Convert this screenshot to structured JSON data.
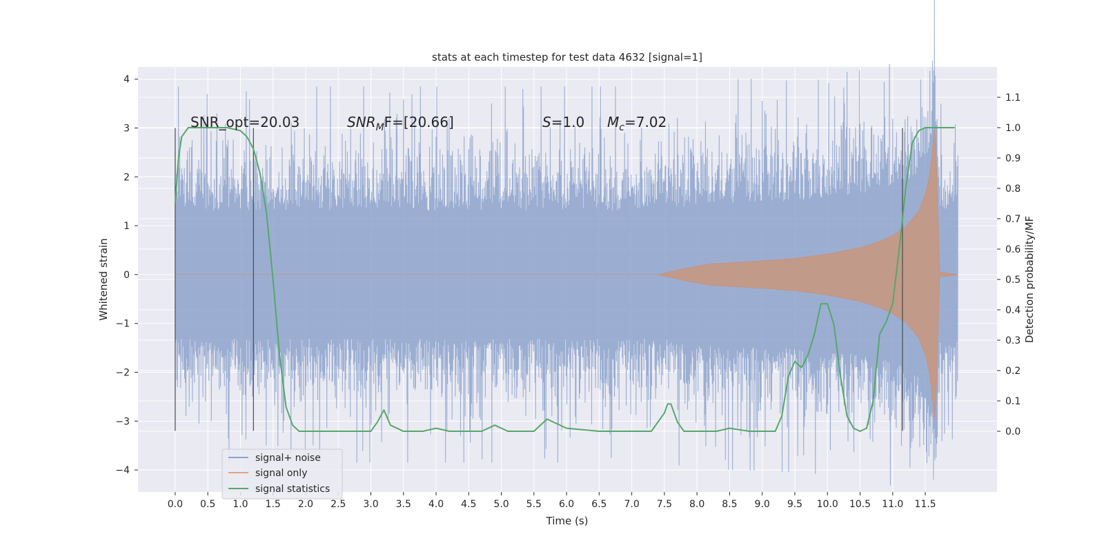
{
  "chart_data": {
    "type": "line",
    "title": "stats at each timestep for test data 4632 [signal=1]",
    "xlabel": "Time (s)",
    "ylabel": "Whitened strain",
    "ylabel_right": "Detection probability/MF",
    "xlim": [
      -0.57,
      12.6
    ],
    "ylim": [
      -4.45,
      4.25
    ],
    "ylim_right": [
      -0.2,
      1.2
    ],
    "x_ticks": [
      "0.0",
      "0.5",
      "1.0",
      "1.5",
      "2.0",
      "2.5",
      "3.0",
      "3.5",
      "4.0",
      "4.5",
      "5.0",
      "5.5",
      "6.0",
      "6.5",
      "7.0",
      "7.5",
      "8.0",
      "8.5",
      "9.0",
      "9.5",
      "10.0",
      "10.5",
      "11.0",
      "11.5"
    ],
    "y_ticks": [
      "−4",
      "−3",
      "−2",
      "−1",
      "0",
      "1",
      "2",
      "3",
      "4"
    ],
    "y_ticks_right": [
      "0.0",
      "0.1",
      "0.2",
      "0.3",
      "0.4",
      "0.5",
      "0.6",
      "0.7",
      "0.8",
      "0.9",
      "1.0",
      "1.1"
    ],
    "grid": true,
    "legend_position": "lower-left",
    "legend": [
      "signal+ noise",
      "signal only",
      "signal statistics"
    ],
    "colors": {
      "noise": "#8da3cc",
      "signal": "#dd8452",
      "signal_fill": "#c8967e",
      "stats": "#55a868",
      "vline": "#4a4a4a",
      "background": "#eaeaf2",
      "grid": "#ffffff"
    },
    "annotations": {
      "snr_opt": "SNR_opt=20.03",
      "snr_mf_sym": "SNR",
      "snr_mf_sub": "M",
      "snr_mf_rest": "F=[20.66]",
      "s_sym": "S",
      "s_rest": "=1.0",
      "mc_sym": "M",
      "mc_sub": "c",
      "mc_rest": "=7.02"
    },
    "vertical_lines_x": [
      0.0,
      1.2,
      11.15
    ],
    "vertical_lines_range": [
      -3.2,
      3.0
    ],
    "noise_series": {
      "name": "signal+ noise",
      "x_range": [
        0.0,
        12.0
      ],
      "typical_amplitude": 1.75,
      "peak_amplitude": 3.85
    },
    "signal_series": {
      "name": "signal only",
      "envelope_x": [
        0.0,
        7.0,
        7.4,
        7.8,
        8.2,
        8.6,
        9.0,
        9.5,
        10.0,
        10.5,
        10.8,
        11.0,
        11.2,
        11.4,
        11.5,
        11.55,
        11.6,
        11.65,
        11.7,
        11.72,
        12.0
      ],
      "envelope_amp": [
        0.0,
        0.0,
        0.0,
        0.12,
        0.22,
        0.25,
        0.28,
        0.33,
        0.42,
        0.55,
        0.68,
        0.8,
        0.98,
        1.3,
        1.65,
        1.9,
        2.4,
        3.1,
        1.0,
        0.05,
        0.0
      ]
    },
    "stats_series": {
      "name": "signal statistics",
      "x": [
        0.0,
        0.05,
        0.1,
        0.2,
        0.3,
        0.5,
        0.8,
        1.0,
        1.1,
        1.2,
        1.3,
        1.4,
        1.5,
        1.6,
        1.7,
        1.8,
        1.9,
        2.0,
        2.5,
        3.0,
        3.1,
        3.2,
        3.3,
        3.5,
        3.8,
        4.0,
        4.2,
        4.5,
        4.7,
        4.9,
        5.1,
        5.5,
        5.7,
        6.0,
        6.5,
        6.8,
        7.3,
        7.5,
        7.55,
        7.6,
        7.7,
        7.8,
        8.0,
        8.3,
        8.5,
        8.8,
        9.2,
        9.3,
        9.4,
        9.5,
        9.6,
        9.7,
        9.8,
        9.9,
        10.0,
        10.1,
        10.2,
        10.3,
        10.4,
        10.5,
        10.6,
        10.7,
        10.8,
        10.9,
        11.0,
        11.1,
        11.2,
        11.3,
        11.4,
        11.5,
        11.7,
        11.95
      ],
      "y": [
        0.75,
        0.9,
        0.97,
        1.0,
        1.0,
        1.0,
        1.0,
        0.99,
        0.97,
        0.93,
        0.85,
        0.72,
        0.5,
        0.25,
        0.08,
        0.02,
        0.0,
        0.0,
        0.0,
        0.0,
        0.03,
        0.07,
        0.02,
        0.0,
        0.0,
        0.01,
        0.0,
        0.0,
        0.0,
        0.02,
        0.0,
        0.0,
        0.04,
        0.01,
        0.0,
        0.0,
        0.0,
        0.06,
        0.09,
        0.09,
        0.03,
        0.0,
        0.0,
        0.0,
        0.01,
        0.0,
        0.0,
        0.05,
        0.18,
        0.23,
        0.21,
        0.25,
        0.32,
        0.42,
        0.42,
        0.35,
        0.18,
        0.05,
        0.01,
        0.0,
        0.01,
        0.1,
        0.32,
        0.36,
        0.42,
        0.6,
        0.8,
        0.95,
        0.99,
        1.0,
        1.0,
        1.0
      ]
    }
  }
}
